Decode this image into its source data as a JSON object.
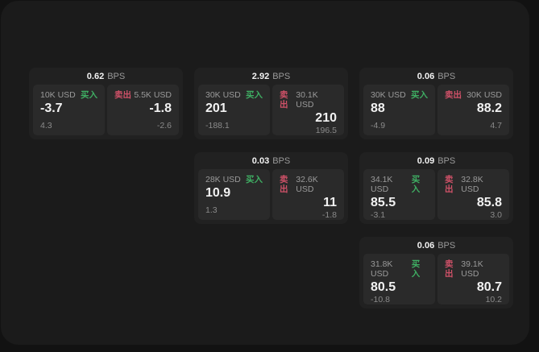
{
  "colors": {
    "backdrop": "#121212",
    "window": "#1b1b1b",
    "card": "#212121",
    "panel": "#2a2a2a",
    "buy": "#3fae63",
    "sell": "#cf5168"
  },
  "labels": {
    "buy": "买入",
    "sell": "卖出",
    "bps_unit": "BPS"
  },
  "cards": [
    {
      "bps": "0.62",
      "buy": {
        "notional": "10K USD",
        "value": "-3.7",
        "sub": "4.3"
      },
      "sell": {
        "notional": "5.5K USD",
        "value": "-1.8",
        "sub": "-2.6"
      }
    },
    {
      "bps": "2.92",
      "buy": {
        "notional": "30K USD",
        "value": "201",
        "sub": "-188.1"
      },
      "sell": {
        "notional": "30.1K USD",
        "value": "210",
        "sub": "196.5"
      }
    },
    {
      "bps": "0.03",
      "buy": {
        "notional": "28K USD",
        "value": "10.9",
        "sub": "1.3"
      },
      "sell": {
        "notional": "32.6K USD",
        "value": "11",
        "sub": "-1.8"
      }
    },
    {
      "bps": "0.06",
      "buy": {
        "notional": "30K USD",
        "value": "88",
        "sub": "-4.9"
      },
      "sell": {
        "notional": "30K USD",
        "value": "88.2",
        "sub": "4.7"
      }
    },
    {
      "bps": "0.09",
      "buy": {
        "notional": "34.1K USD",
        "value": "85.5",
        "sub": "-3.1"
      },
      "sell": {
        "notional": "32.8K USD",
        "value": "85.8",
        "sub": "3.0"
      }
    },
    {
      "bps": "0.06",
      "buy": {
        "notional": "31.8K USD",
        "value": "80.5",
        "sub": "-10.8"
      },
      "sell": {
        "notional": "39.1K USD",
        "value": "80.7",
        "sub": "10.2"
      }
    }
  ]
}
